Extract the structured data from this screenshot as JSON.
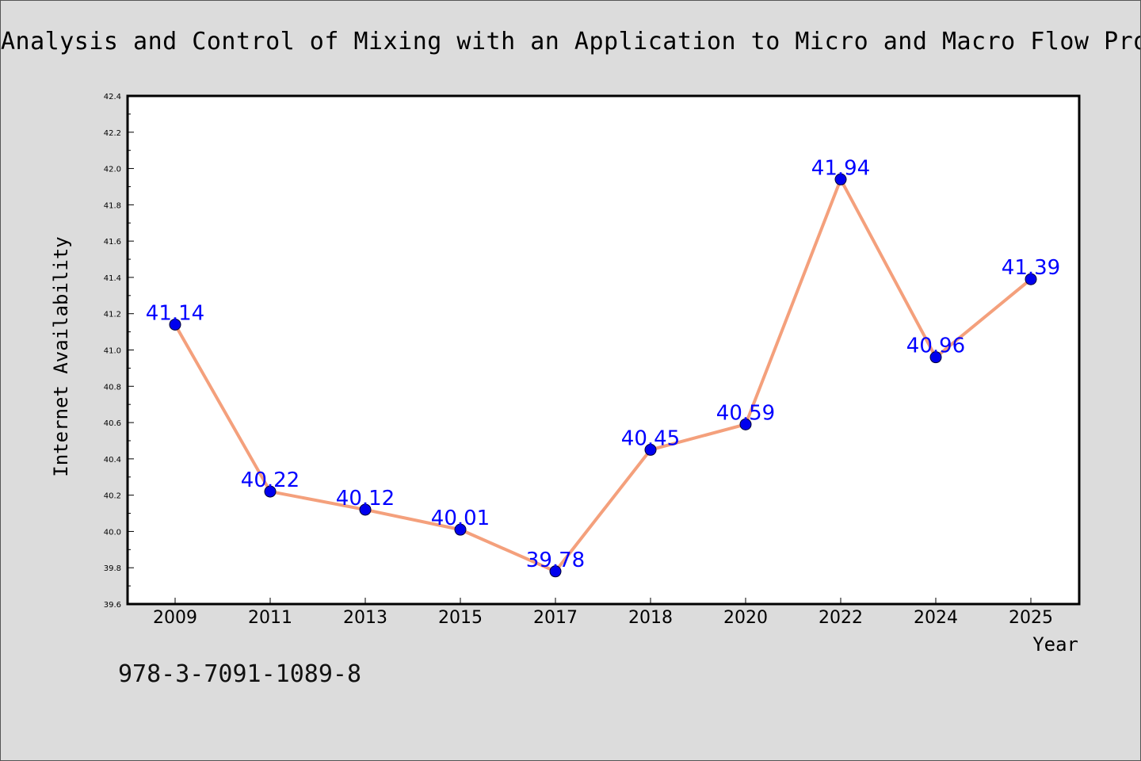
{
  "chart_data": {
    "type": "line",
    "title": "Analysis and Control of Mixing with an Application to Micro and Macro Flow Processes",
    "xlabel": "Year",
    "ylabel": "Internet Availability",
    "categories": [
      "2009",
      "2011",
      "2013",
      "2015",
      "2017",
      "2018",
      "2020",
      "2022",
      "2024",
      "2025"
    ],
    "series": [
      {
        "values": [
          41.14,
          40.22,
          40.12,
          40.01,
          39.78,
          40.45,
          40.59,
          41.94,
          40.96,
          41.39
        ]
      }
    ],
    "data_labels": [
      "41.14",
      "40.22",
      "40.12",
      "40.01",
      "39.78",
      "40.45",
      "40.59",
      "41.94",
      "40.96",
      "41.39"
    ],
    "ylim": [
      39.6,
      42.4
    ],
    "yticks": [
      "39.6",
      "39.8",
      "40.0",
      "40.2",
      "40.4",
      "40.6",
      "40.8",
      "41.0",
      "41.2",
      "41.4",
      "41.6",
      "41.8",
      "42.0",
      "42.2",
      "42.4"
    ],
    "grid": false,
    "legend": "none",
    "colors": {
      "line": "#f4a07c",
      "marker": "#0000ee",
      "label": "#0000ff",
      "plot_bg": "#ffffff",
      "page_bg": "#dcdcdc"
    }
  },
  "footer": {
    "isbn": "978-3-7091-1089-8"
  }
}
